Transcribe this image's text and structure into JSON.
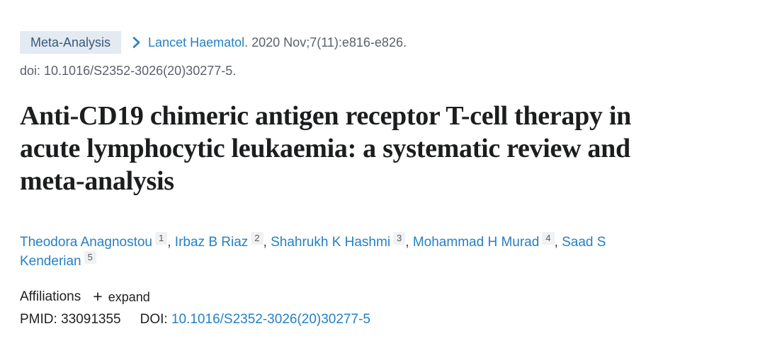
{
  "header": {
    "publication_type": "Meta-Analysis",
    "journal": "Lancet Haematol",
    "citation_details": ". 2020 Nov;7(11):e816-e826.",
    "doi_line": "doi: 10.1016/S2352-3026(20)30277-5."
  },
  "article": {
    "title": "Anti-CD19 chimeric antigen receptor T-cell therapy in acute lymphocytic leukaemia: a systematic review and meta-analysis"
  },
  "authors": {
    "separator": ", ",
    "list": [
      {
        "name": "Theodora Anagnostou",
        "sup": "1"
      },
      {
        "name": "Irbaz B Riaz",
        "sup": "2"
      },
      {
        "name": "Shahrukh K Hashmi",
        "sup": "3"
      },
      {
        "name": "Mohammad H Murad",
        "sup": "4"
      },
      {
        "name": "Saad S Kenderian",
        "sup": "5"
      }
    ]
  },
  "affiliations": {
    "label": "Affiliations",
    "plus_icon": "+",
    "expand_label": "expand"
  },
  "identifiers": {
    "pmid_label": "PMID:",
    "pmid_value": "33091355",
    "doi_label": "DOI:",
    "doi_value": "10.1016/S2352-3026(20)30277-5"
  },
  "icons": {
    "chevron_right": "chevron-right"
  },
  "colors": {
    "link_blue": "#2580c4",
    "badge_bg": "#e3eaf2",
    "badge_text": "#3a587c",
    "muted_gray": "#5b616b",
    "dark_text": "#212121",
    "title_text": "#1c1d1e",
    "sup_bg": "#f0f1f3",
    "sup_text": "#545b62"
  }
}
